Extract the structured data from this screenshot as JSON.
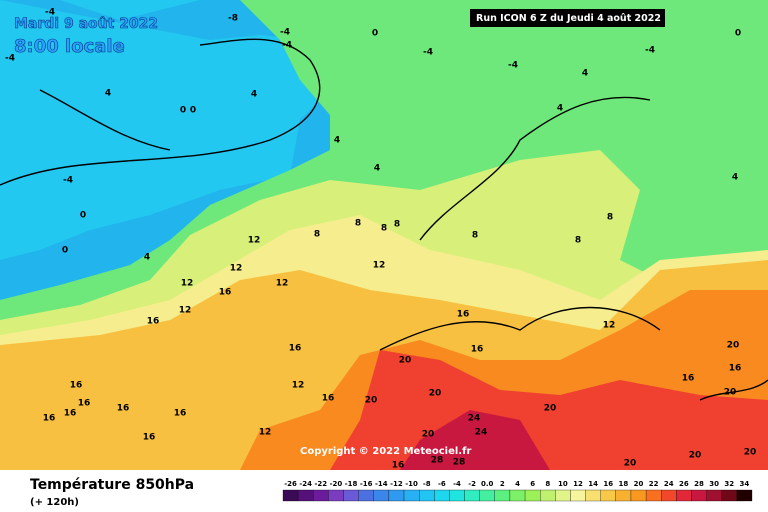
{
  "header": {
    "title": "Mardi 9 août 2022",
    "time": "8:00 locale",
    "run": "Run ICON 6 Z du Jeudi 4 août 2022",
    "copyright": "Copyright © 2022 Meteociel.fr"
  },
  "footer": {
    "field": "Température 850hPa",
    "lead": "(+ 120h)"
  },
  "scale": {
    "labels": [
      "-26",
      "-24",
      "-22",
      "-20",
      "-18",
      "-16",
      "-14",
      "-12",
      "-10",
      "-8",
      "-6",
      "-4",
      "-2",
      "0.0",
      "2",
      "4",
      "6",
      "8",
      "10",
      "12",
      "14",
      "16",
      "18",
      "20",
      "22",
      "24",
      "26",
      "28",
      "30",
      "32",
      "34"
    ],
    "colors": [
      "#3b0a55",
      "#55107a",
      "#6b1c9c",
      "#7b3cc0",
      "#6a5ad8",
      "#4c70e0",
      "#3a86ea",
      "#2f9af0",
      "#28b0f4",
      "#22c4f4",
      "#1ed6ee",
      "#20e4e0",
      "#30ecc0",
      "#44f0a0",
      "#5cf080",
      "#7cf066",
      "#9cf058",
      "#c0f070",
      "#e0f48a",
      "#f6f49c",
      "#f8e070",
      "#f8c848",
      "#f8b030",
      "#f89820",
      "#f87020",
      "#f04828",
      "#e02838",
      "#c81840",
      "#a01030",
      "#700818",
      "#200000"
    ]
  },
  "map": {
    "labels": [
      "-8",
      "-4",
      "-4",
      "-4",
      "-4",
      "0",
      "-4",
      "-4",
      "4",
      "-4",
      "0",
      "4",
      "0",
      "0",
      "4",
      "4",
      "-4",
      "4",
      "4",
      "8",
      "8",
      "8",
      "8",
      "8",
      "12",
      "12",
      "12",
      "12",
      "12",
      "16",
      "12",
      "16",
      "8",
      "8",
      "4",
      "0",
      "0",
      "4",
      "16",
      "16",
      "20",
      "12",
      "16",
      "12",
      "16",
      "20",
      "20",
      "20",
      "24",
      "24",
      "20",
      "20",
      "16",
      "16",
      "16",
      "16",
      "16",
      "16",
      "16",
      "16",
      "12",
      "16",
      "28",
      "28",
      "16",
      "20",
      "20",
      "20",
      "20"
    ]
  }
}
